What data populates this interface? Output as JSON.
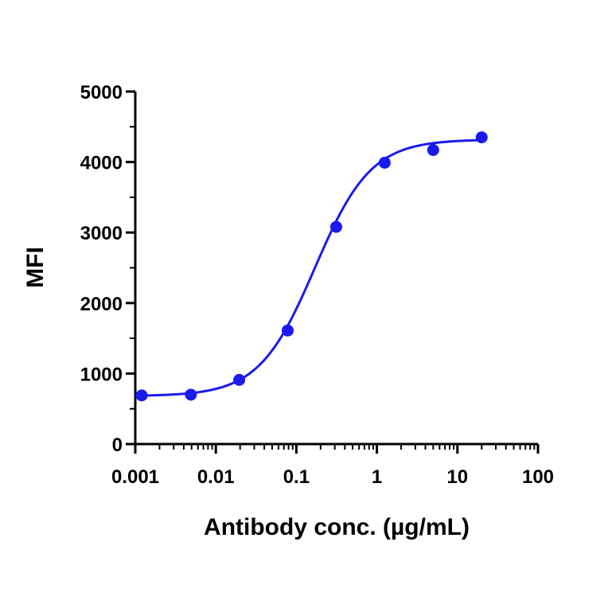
{
  "chart_data": {
    "type": "scatter",
    "title": "",
    "xlabel": "Antibody conc. (µg/mL)",
    "ylabel": "MFI",
    "xscale": "log",
    "xlim": [
      0.001,
      100
    ],
    "ylim": [
      0,
      5000
    ],
    "x_ticks": [
      0.001,
      0.01,
      0.1,
      1,
      10,
      100
    ],
    "x_tick_labels": [
      "0.001",
      "0.01",
      "0.1",
      "1",
      "10",
      "100"
    ],
    "y_ticks": [
      0,
      1000,
      2000,
      3000,
      4000,
      5000
    ],
    "y_tick_labels": [
      "0",
      "1000",
      "2000",
      "3000",
      "4000",
      "5000"
    ],
    "grid": false,
    "legend": "none",
    "series": [
      {
        "color": "#1a1aee",
        "points": [
          {
            "x": 0.0012,
            "y": 690
          },
          {
            "x": 0.0049,
            "y": 700
          },
          {
            "x": 0.0195,
            "y": 910
          },
          {
            "x": 0.078,
            "y": 1610
          },
          {
            "x": 0.3125,
            "y": 3080
          },
          {
            "x": 1.25,
            "y": 3990
          },
          {
            "x": 5,
            "y": 4170
          },
          {
            "x": 20,
            "y": 4350
          }
        ],
        "fit": {
          "model": "4PL",
          "bottom": 680,
          "top": 4320,
          "ec50": 0.17,
          "hill": 1.25
        }
      }
    ]
  }
}
